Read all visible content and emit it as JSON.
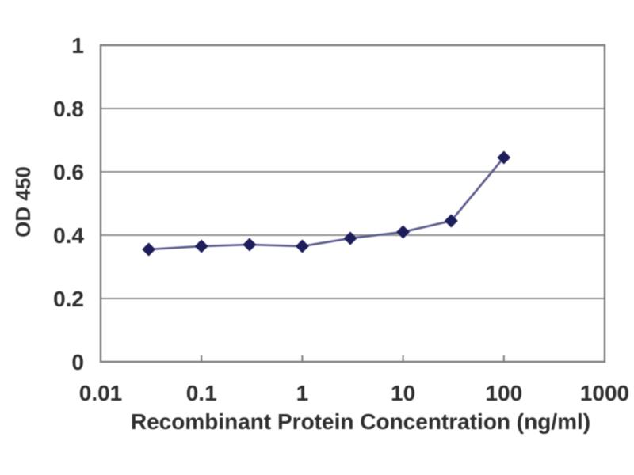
{
  "chart_data": {
    "type": "line",
    "title": "",
    "xlabel": "Recombinant Protein Concentration (ng/ml)",
    "ylabel": "OD 450",
    "x_scale": "log",
    "xlim": [
      0.01,
      1000
    ],
    "ylim": [
      0,
      1
    ],
    "grid": "horizontal",
    "legend": "none",
    "marker_shape": "diamond",
    "x": [
      0.03,
      0.1,
      0.3,
      1,
      3,
      10,
      30,
      100
    ],
    "series": [
      {
        "name": "OD 450",
        "values": [
          0.355,
          0.365,
          0.37,
          0.365,
          0.39,
          0.41,
          0.445,
          0.645
        ]
      }
    ],
    "x_ticks": [
      {
        "value": 0.01,
        "label": "0.01"
      },
      {
        "value": 0.1,
        "label": "0.1"
      },
      {
        "value": 1,
        "label": "1"
      },
      {
        "value": 10,
        "label": "10"
      },
      {
        "value": 100,
        "label": "100"
      },
      {
        "value": 1000,
        "label": "1000"
      }
    ],
    "y_ticks": [
      {
        "value": 0,
        "label": "0"
      },
      {
        "value": 0.2,
        "label": "0.2"
      },
      {
        "value": 0.4,
        "label": "0.4"
      },
      {
        "value": 0.6,
        "label": "0.6"
      },
      {
        "value": 0.8,
        "label": "0.8"
      },
      {
        "value": 1,
        "label": "1"
      }
    ],
    "colors": {
      "line": "#5f5f8f",
      "marker": "#1d1d5c",
      "grid": "#909090",
      "axis": "#7d7d7d",
      "text": "#2f2f2f",
      "background": "#ffffff"
    }
  }
}
